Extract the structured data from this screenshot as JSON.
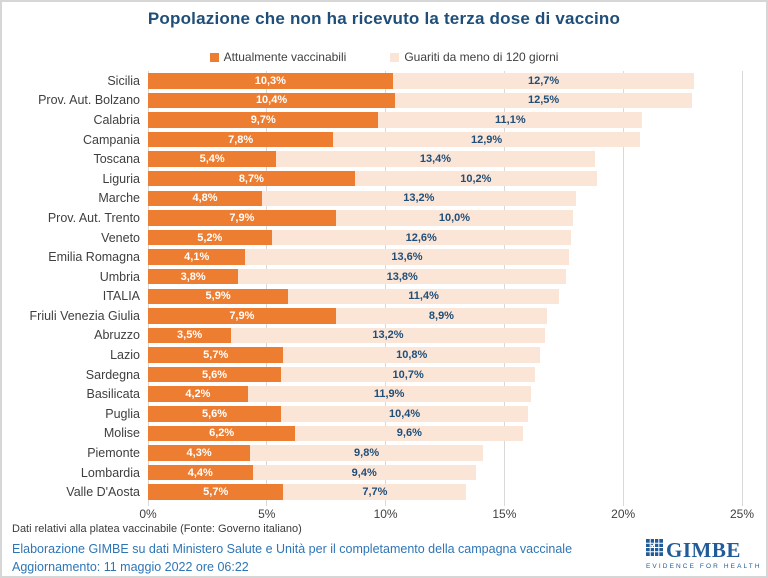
{
  "title": "Popolazione che non ha ricevuto la terza dose di vaccino",
  "colors": {
    "accent_orange": "#ED7D31",
    "accent_peach": "#FBE5D6",
    "title_blue": "#1F4E79",
    "footer_blue": "#2E75B6",
    "gridline_gray": "#D9D9D9"
  },
  "legend": [
    {
      "label": "Attualmente vaccinabili",
      "color": "#ED7D31"
    },
    {
      "label": "Guariti da meno di 120 giorni",
      "color": "#FBE5D6"
    }
  ],
  "chart_data": {
    "type": "bar",
    "orientation": "horizontal",
    "stacked": true,
    "title": "Popolazione che non ha ricevuto la terza dose di vaccino",
    "xlabel": "",
    "ylabel": "",
    "xlim": [
      0,
      25
    ],
    "x_ticks": [
      "0%",
      "5%",
      "10%",
      "15%",
      "20%",
      "25%"
    ],
    "grid": true,
    "value_format": "percent-comma-1-decimal",
    "categories": [
      "Sicilia",
      "Prov. Aut. Bolzano",
      "Calabria",
      "Campania",
      "Toscana",
      "Liguria",
      "Marche",
      "Prov. Aut. Trento",
      "Veneto",
      "Emilia Romagna",
      "Umbria",
      "ITALIA",
      "Friuli Venezia Giulia",
      "Abruzzo",
      "Lazio",
      "Sardegna",
      "Basilicata",
      "Puglia",
      "Molise",
      "Piemonte",
      "Lombardia",
      "Valle D'Aosta"
    ],
    "series": [
      {
        "name": "Attualmente vaccinabili",
        "color": "#ED7D31",
        "values": [
          10.3,
          10.4,
          9.7,
          7.8,
          5.4,
          8.7,
          4.8,
          7.9,
          5.2,
          4.1,
          3.8,
          5.9,
          7.9,
          3.5,
          5.7,
          5.6,
          4.2,
          5.6,
          6.2,
          4.3,
          4.4,
          5.7
        ]
      },
      {
        "name": "Guariti da meno di 120 giorni",
        "color": "#FBE5D6",
        "values": [
          12.7,
          12.5,
          11.1,
          12.9,
          13.4,
          10.2,
          13.2,
          10.0,
          12.6,
          13.6,
          13.8,
          11.4,
          8.9,
          13.2,
          10.8,
          10.7,
          11.9,
          10.4,
          9.6,
          9.8,
          9.4,
          7.7
        ]
      }
    ]
  },
  "footer": {
    "note": "Dati relativi alla platea vaccinabile (Fonte: Governo italiano)",
    "credit": "Elaborazione GIMBE su dati Ministero Salute e Unità per il completamento della campagna vaccinale",
    "updated": "Aggiornamento: 11 maggio 2022 ore 06:22"
  },
  "logo": {
    "name": "GIMBE",
    "tagline": "EVIDENCE FOR HEALTH",
    "icon": "gimbe-grid-icon"
  }
}
